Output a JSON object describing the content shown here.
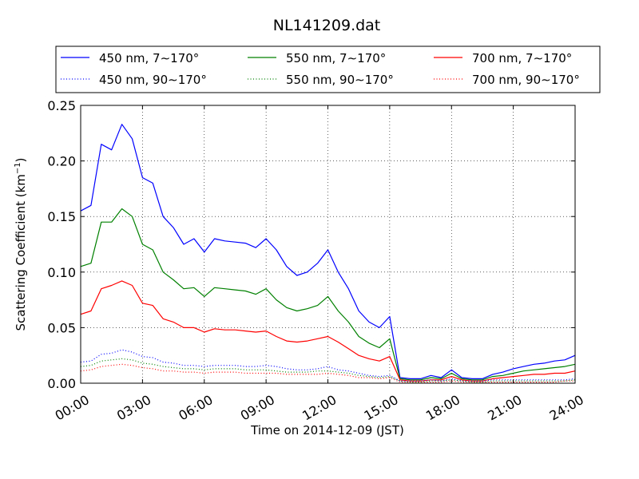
{
  "chart_data": {
    "type": "line",
    "title": "NL141209.dat",
    "xlabel": "Time on 2014-12-09 (JST)",
    "ylabel": "Scattering Coefficient (km",
    "ylabel_sup": "−1",
    "ylabel_close": ")",
    "xlim": [
      "00:00",
      "24:00"
    ],
    "ylim": [
      0.0,
      0.25
    ],
    "grid": true,
    "legend_position": "top",
    "x_ticks": [
      "00:00",
      "03:00",
      "06:00",
      "09:00",
      "12:00",
      "15:00",
      "18:00",
      "21:00",
      "24:00"
    ],
    "y_ticks": [
      "0.00",
      "0.05",
      "0.10",
      "0.15",
      "0.20",
      "0.25"
    ],
    "x": [
      "00:00",
      "00:30",
      "01:00",
      "01:30",
      "02:00",
      "02:30",
      "03:00",
      "03:30",
      "04:00",
      "04:30",
      "05:00",
      "05:30",
      "06:00",
      "06:30",
      "07:00",
      "07:30",
      "08:00",
      "08:30",
      "09:00",
      "09:30",
      "10:00",
      "10:30",
      "11:00",
      "11:30",
      "12:00",
      "12:30",
      "13:00",
      "13:30",
      "14:00",
      "14:30",
      "15:00",
      "15:30",
      "16:00",
      "16:30",
      "17:00",
      "17:30",
      "18:00",
      "18:30",
      "19:00",
      "19:30",
      "20:00",
      "20:30",
      "21:00",
      "21:30",
      "22:00",
      "22:30",
      "23:00",
      "23:30",
      "24:00"
    ],
    "series": [
      {
        "name": "450 nm, 7∼170°",
        "color": "#0000ff",
        "style": "solid",
        "values": [
          0.155,
          0.16,
          0.215,
          0.21,
          0.233,
          0.22,
          0.185,
          0.18,
          0.15,
          0.14,
          0.125,
          0.13,
          0.118,
          0.13,
          0.128,
          0.127,
          0.126,
          0.122,
          0.13,
          0.12,
          0.105,
          0.097,
          0.1,
          0.108,
          0.12,
          0.1,
          0.085,
          0.065,
          0.055,
          0.05,
          0.06,
          0.005,
          0.004,
          0.004,
          0.007,
          0.005,
          0.012,
          0.005,
          0.004,
          0.004,
          0.008,
          0.01,
          0.013,
          0.015,
          0.017,
          0.018,
          0.02,
          0.021,
          0.025
        ]
      },
      {
        "name": "550 nm, 7∼170°",
        "color": "#008000",
        "style": "solid",
        "values": [
          0.105,
          0.108,
          0.145,
          0.145,
          0.157,
          0.15,
          0.125,
          0.12,
          0.1,
          0.093,
          0.085,
          0.086,
          0.078,
          0.086,
          0.085,
          0.084,
          0.083,
          0.08,
          0.085,
          0.075,
          0.068,
          0.065,
          0.067,
          0.07,
          0.078,
          0.065,
          0.055,
          0.042,
          0.036,
          0.032,
          0.04,
          0.004,
          0.003,
          0.003,
          0.005,
          0.004,
          0.009,
          0.004,
          0.003,
          0.003,
          0.006,
          0.007,
          0.009,
          0.011,
          0.012,
          0.013,
          0.014,
          0.015,
          0.017
        ]
      },
      {
        "name": "700 nm, 7∼170°",
        "color": "#ff0000",
        "style": "solid",
        "values": [
          0.062,
          0.065,
          0.085,
          0.088,
          0.092,
          0.088,
          0.072,
          0.07,
          0.058,
          0.055,
          0.05,
          0.05,
          0.046,
          0.049,
          0.048,
          0.048,
          0.047,
          0.046,
          0.047,
          0.042,
          0.038,
          0.037,
          0.038,
          0.04,
          0.042,
          0.037,
          0.031,
          0.025,
          0.022,
          0.02,
          0.024,
          0.003,
          0.002,
          0.002,
          0.003,
          0.003,
          0.006,
          0.003,
          0.002,
          0.002,
          0.004,
          0.005,
          0.006,
          0.007,
          0.008,
          0.008,
          0.009,
          0.009,
          0.011
        ]
      },
      {
        "name": "450 nm, 90∼170°",
        "color": "#0000ff",
        "style": "dotted",
        "values": [
          0.019,
          0.02,
          0.026,
          0.027,
          0.03,
          0.028,
          0.024,
          0.023,
          0.019,
          0.018,
          0.016,
          0.016,
          0.015,
          0.016,
          0.016,
          0.016,
          0.015,
          0.015,
          0.016,
          0.015,
          0.013,
          0.012,
          0.012,
          0.013,
          0.015,
          0.012,
          0.011,
          0.009,
          0.007,
          0.006,
          0.007,
          0.002,
          0.002,
          0.002,
          0.003,
          0.002,
          0.004,
          0.002,
          0.002,
          0.002,
          0.003,
          0.003,
          0.003,
          0.003,
          0.003,
          0.003,
          0.003,
          0.003,
          0.004
        ]
      },
      {
        "name": "550 nm, 90∼170°",
        "color": "#008000",
        "style": "dotted",
        "values": [
          0.015,
          0.016,
          0.02,
          0.021,
          0.022,
          0.021,
          0.018,
          0.017,
          0.015,
          0.014,
          0.013,
          0.013,
          0.012,
          0.013,
          0.013,
          0.013,
          0.012,
          0.012,
          0.012,
          0.011,
          0.01,
          0.01,
          0.01,
          0.011,
          0.011,
          0.01,
          0.009,
          0.007,
          0.006,
          0.005,
          0.006,
          0.002,
          0.001,
          0.001,
          0.002,
          0.002,
          0.003,
          0.002,
          0.001,
          0.001,
          0.002,
          0.002,
          0.002,
          0.002,
          0.002,
          0.002,
          0.002,
          0.002,
          0.003
        ]
      },
      {
        "name": "700 nm, 90∼170°",
        "color": "#ff0000",
        "style": "dotted",
        "values": [
          0.011,
          0.012,
          0.015,
          0.016,
          0.017,
          0.016,
          0.014,
          0.013,
          0.011,
          0.011,
          0.01,
          0.01,
          0.009,
          0.01,
          0.01,
          0.01,
          0.009,
          0.009,
          0.009,
          0.009,
          0.008,
          0.008,
          0.008,
          0.008,
          0.009,
          0.008,
          0.007,
          0.005,
          0.005,
          0.004,
          0.005,
          0.001,
          0.001,
          0.001,
          0.001,
          0.001,
          0.002,
          0.001,
          0.001,
          0.001,
          0.001,
          0.001,
          0.001,
          0.001,
          0.001,
          0.001,
          0.001,
          0.002,
          0.002
        ]
      }
    ]
  }
}
